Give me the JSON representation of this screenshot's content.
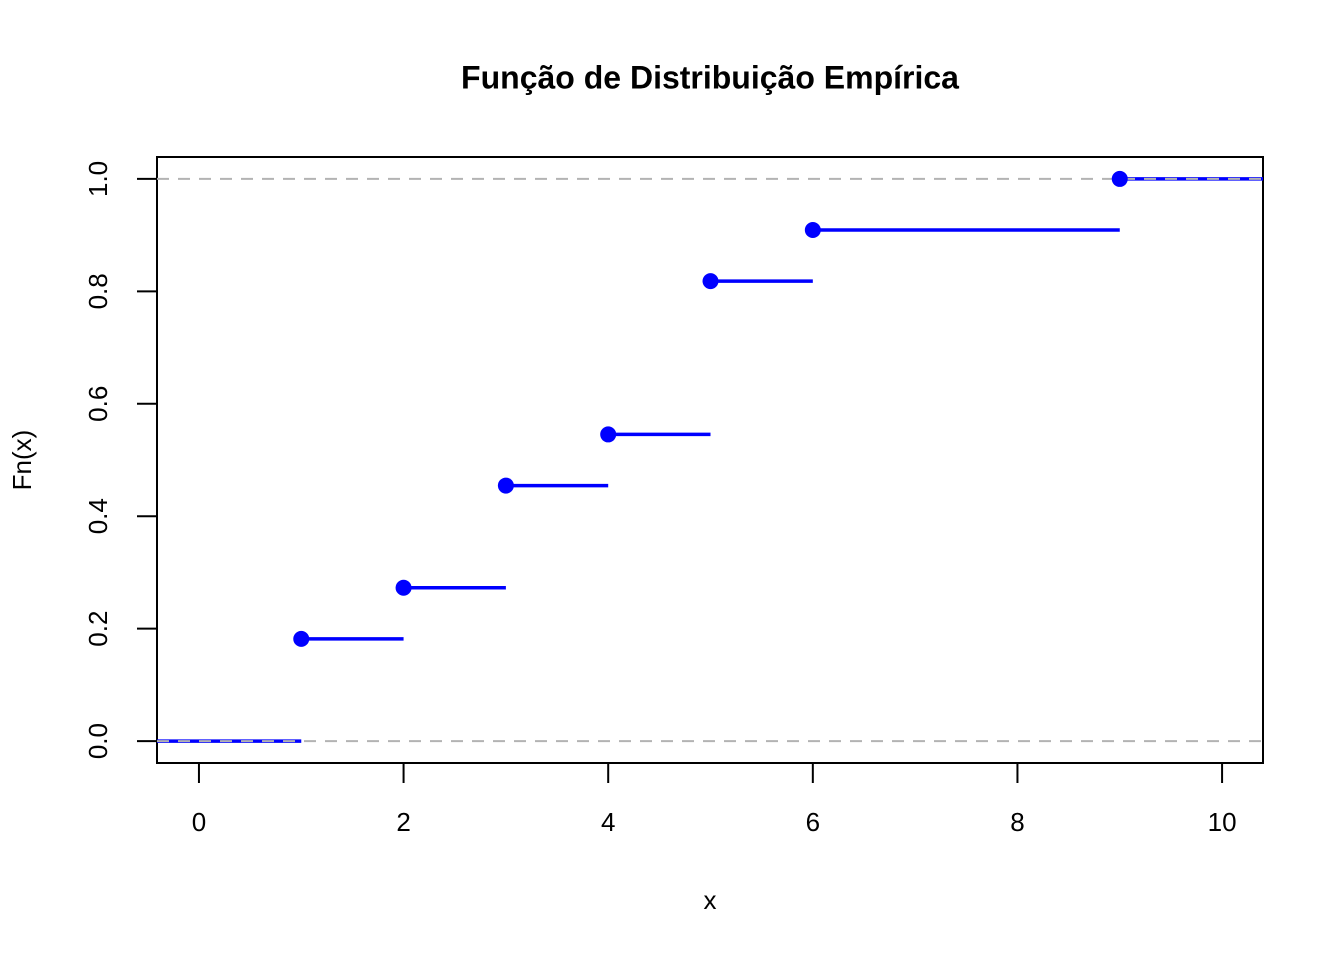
{
  "chart_data": {
    "type": "step",
    "title": "Função de Distribuição Empírica",
    "xlabel": "x",
    "ylabel": "Fn(x)",
    "x": [
      1,
      2,
      3,
      4,
      5,
      6,
      9
    ],
    "values": [
      0.1818,
      0.2727,
      0.4545,
      0.5455,
      0.8182,
      0.9091,
      1.0
    ],
    "y_left": 0,
    "color": "#0000ff",
    "hlines": [
      0,
      1
    ],
    "hline_color": "#b3b3b3",
    "xlim": [
      -0.41,
      10.4
    ],
    "ylim": [
      -0.039,
      1.039
    ],
    "xticks": [
      0,
      2,
      4,
      6,
      8,
      10
    ],
    "yticks": [
      {
        "value": 0,
        "label": "0.0"
      },
      0.2,
      0.4,
      0.6,
      0.8,
      {
        "value": 1,
        "label": "1.0"
      }
    ]
  }
}
